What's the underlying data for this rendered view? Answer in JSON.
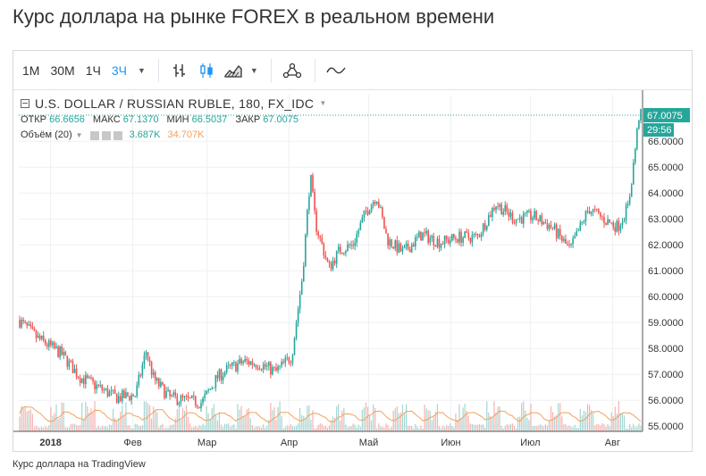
{
  "page": {
    "title": "Курс доллара на рынке FOREX в реальном времени",
    "caption": "Курс доллара на TradingView"
  },
  "toolbar": {
    "intervals": [
      "1M",
      "30M",
      "1Ч",
      "3Ч"
    ],
    "active_interval": "3Ч",
    "icons": [
      "bar-chart-icon",
      "candlestick-icon",
      "area-chart-icon",
      "indicators-icon",
      "compare-icon"
    ]
  },
  "legend": {
    "symbol": "U.S. DOLLAR / RUSSIAN RUBLE, 180, FX_IDC",
    "open_label": "ОТКР",
    "open": "66.6656",
    "high_label": "МАКС",
    "high": "67.1370",
    "low_label": "МИН",
    "low": "66.5037",
    "close_label": "ЗАКР",
    "close": "67.0075",
    "volume_label": "Объём (20)",
    "volume_value1": "3.687K",
    "volume_value2": "34.707K"
  },
  "price_tags": {
    "last_price": "67.0075",
    "countdown": "29:56"
  },
  "colors": {
    "up": "#26a69a",
    "down": "#ef5350",
    "volume_ma": "#f5a05a",
    "accent": "#2196f3",
    "grid": "#eef0f3"
  },
  "chart_data": {
    "type": "candlestick",
    "title": "",
    "symbol": "U.S. DOLLAR / RUSSIAN RUBLE, 180, FX_IDC",
    "ylim": [
      54.8,
      67.8
    ],
    "y_ticks": [
      "55.0000",
      "56.0000",
      "57.0000",
      "58.0000",
      "59.0000",
      "60.0000",
      "61.0000",
      "62.0000",
      "63.0000",
      "64.0000",
      "65.0000",
      "66.0000"
    ],
    "x_ticks": [
      "2018",
      "Фев",
      "Мар",
      "Апр",
      "Май",
      "Июн",
      "Июл",
      "Авг"
    ],
    "x_tick_dates": [
      "2018-01-01",
      "2018-02-01",
      "2018-03-01",
      "2018-04-01",
      "2018-05-01",
      "2018-06-01",
      "2018-07-01",
      "2018-08-01"
    ],
    "x_start": "2017-12-20",
    "x_end": "2018-08-12",
    "series": [
      {
        "name": "Close",
        "x": [
          "2017-12-20",
          "2017-12-27",
          "2018-01-05",
          "2018-01-12",
          "2018-01-19",
          "2018-01-26",
          "2018-02-02",
          "2018-02-06",
          "2018-02-09",
          "2018-02-15",
          "2018-02-21",
          "2018-02-27",
          "2018-03-05",
          "2018-03-09",
          "2018-03-15",
          "2018-03-21",
          "2018-03-27",
          "2018-04-02",
          "2018-04-06",
          "2018-04-09",
          "2018-04-11",
          "2018-04-16",
          "2018-04-20",
          "2018-04-25",
          "2018-04-30",
          "2018-05-04",
          "2018-05-08",
          "2018-05-14",
          "2018-05-21",
          "2018-05-28",
          "2018-06-04",
          "2018-06-11",
          "2018-06-18",
          "2018-06-25",
          "2018-07-02",
          "2018-07-09",
          "2018-07-16",
          "2018-07-23",
          "2018-07-30",
          "2018-08-03",
          "2018-08-07",
          "2018-08-09",
          "2018-08-11"
        ],
        "values": [
          59.1,
          58.4,
          57.8,
          56.9,
          56.5,
          56.1,
          56.2,
          57.9,
          56.8,
          56.1,
          56.0,
          55.9,
          56.9,
          57.2,
          57.5,
          57.4,
          57.1,
          57.7,
          60.8,
          64.7,
          62.8,
          61.1,
          61.8,
          62.0,
          63.3,
          63.9,
          62.2,
          61.7,
          62.4,
          62.1,
          62.3,
          62.3,
          63.6,
          63.0,
          63.1,
          62.7,
          61.8,
          63.4,
          62.9,
          62.7,
          63.5,
          65.2,
          67.0
        ]
      }
    ],
    "volume": {
      "label": "Объём (20)",
      "last": "3.687K",
      "ma": "34.707K"
    }
  }
}
